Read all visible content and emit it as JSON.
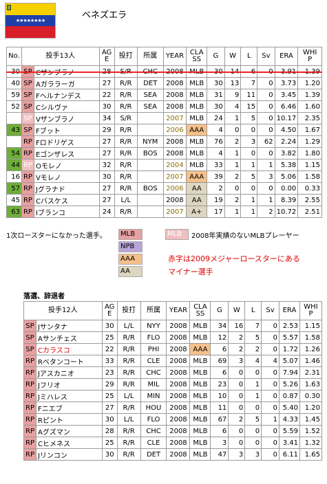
{
  "title": "ベネズエラ",
  "header": [
    "No.",
    "投手13人",
    "AGE",
    "投打",
    "所属",
    "YEAR",
    "CLASS",
    "G",
    "W",
    "L",
    "Sv",
    "ERA",
    "WHIP"
  ],
  "roster": [
    {
      "no": "30",
      "pos": "SP",
      "name": "Cザンブラノ",
      "age": "28",
      "bt": "S/R",
      "team": "CHC",
      "year": "2008",
      "cls": "MLB",
      "g": "30",
      "w": "14",
      "l": "6",
      "sv": "0",
      "era": "3.91",
      "whip": "1.39"
    },
    {
      "no": "40",
      "pos": "SP",
      "name": "Aガララーガ",
      "age": "27",
      "bt": "R/R",
      "team": "DET",
      "year": "2008",
      "cls": "MLB",
      "g": "30",
      "w": "13",
      "l": "7",
      "sv": "0",
      "era": "3.73",
      "whip": "1.20"
    },
    {
      "no": "59",
      "pos": "SP",
      "name": "Fヘルナンデス",
      "age": "22",
      "bt": "R/R",
      "team": "SEA",
      "year": "2008",
      "cls": "MLB",
      "g": "31",
      "w": "9",
      "l": "11",
      "sv": "0",
      "era": "3.45",
      "whip": "1.39"
    },
    {
      "no": "52",
      "pos": "SP",
      "name": "Cシルヴァ",
      "age": "30",
      "bt": "R/R",
      "team": "SEA",
      "year": "2008",
      "cls": "MLB",
      "g": "30",
      "w": "4",
      "l": "15",
      "sv": "0",
      "era": "6.46",
      "whip": "1.60"
    },
    {
      "no": "",
      "pos": "SP",
      "name": "Vザンブラノ",
      "age": "34",
      "bt": "S/R",
      "team": "",
      "year": "2007",
      "cls": "MLB",
      "g": "24",
      "w": "1",
      "l": "5",
      "sv": "0",
      "era": "10.17",
      "whip": "2.35"
    },
    {
      "no": "43",
      "pos": "SP",
      "name": "Fブット",
      "age": "29",
      "bt": "R/R",
      "team": "",
      "year": "2006",
      "cls": "AAA",
      "g": "4",
      "w": "0",
      "l": "0",
      "sv": "0",
      "era": "4.50",
      "whip": "1.67"
    },
    {
      "no": "",
      "pos": "RP",
      "name": "Fロドリゲス",
      "age": "27",
      "bt": "R/R",
      "team": "NYM",
      "year": "2008",
      "cls": "MLB",
      "g": "76",
      "w": "2",
      "l": "3",
      "sv": "62",
      "era": "2.24",
      "whip": "1.29"
    },
    {
      "no": "54",
      "pos": "RP",
      "name": "Eゴンザレス",
      "age": "27",
      "bt": "R/R",
      "team": "BOS",
      "year": "2008",
      "cls": "MLB",
      "g": "4",
      "w": "1",
      "l": "0",
      "sv": "0",
      "era": "3.82",
      "whip": "1.80"
    },
    {
      "no": "44",
      "pos": "RP",
      "name": "Oモレノ",
      "age": "32",
      "bt": "R/R",
      "team": "",
      "year": "2004",
      "cls": "MLB",
      "g": "33",
      "w": "1",
      "l": "1",
      "sv": "1",
      "era": "5.38",
      "whip": "1.15"
    },
    {
      "no": "16",
      "pos": "RP",
      "name": "Vモレノ",
      "age": "30",
      "bt": "R/R",
      "team": "",
      "year": "2007",
      "cls": "AAA",
      "g": "39",
      "w": "2",
      "l": "5",
      "sv": "3",
      "era": "5.06",
      "whip": "1.58"
    },
    {
      "no": "57",
      "pos": "RP",
      "name": "Jグラナド",
      "age": "27",
      "bt": "R/R",
      "team": "BOS",
      "year": "2006",
      "cls": "AA",
      "g": "2",
      "w": "0",
      "l": "0",
      "sv": "0",
      "era": "0.00",
      "whip": "0.33"
    },
    {
      "no": "45",
      "pos": "RP",
      "name": "Cバスケス",
      "age": "27",
      "bt": "L/L",
      "team": "",
      "year": "2008",
      "cls": "AA",
      "g": "19",
      "w": "2",
      "l": "1",
      "sv": "1",
      "era": "8.39",
      "whip": "2.55"
    },
    {
      "no": "63",
      "pos": "RP",
      "name": "Iブランコ",
      "age": "24",
      "bt": "R/R",
      "team": "",
      "year": "2007",
      "cls": "A+",
      "g": "17",
      "w": "1",
      "l": "1",
      "sv": "2",
      "era": "10.72",
      "whip": "2.51"
    }
  ],
  "legend": {
    "note_first": "1次ロースターになかった選手。",
    "mlb": "MLB",
    "npb": "NPB",
    "aaa": "AAA",
    "aa": "AA",
    "no_record_label": "MLB",
    "no_record_text": "2008年実績のないMLBプレーヤー",
    "red_note1": "赤字は2009メジャーロースターにある",
    "red_note2": "マイナー選手"
  },
  "dropped_title": "落選、辞退者",
  "dropped_header": [
    "投手12人",
    "AGE",
    "投打",
    "所属",
    "YEAR",
    "CLASS",
    "G",
    "W",
    "L",
    "Sv",
    "ERA",
    "WHIP"
  ],
  "dropped": [
    {
      "pos": "SP",
      "name": "Jサンタナ",
      "age": "30",
      "bt": "L/L",
      "team": "NYY",
      "year": "2008",
      "cls": "MLB",
      "g": "34",
      "w": "16",
      "l": "7",
      "sv": "0",
      "era": "2.53",
      "whip": "1.15"
    },
    {
      "pos": "SP",
      "name": "Aサンチェス",
      "age": "25",
      "bt": "R/R",
      "team": "FLO",
      "year": "2008",
      "cls": "MLB",
      "g": "12",
      "w": "2",
      "l": "5",
      "sv": "0",
      "era": "5.57",
      "whip": "1.58"
    },
    {
      "pos": "SP",
      "name": "Cカラスコ",
      "age": "22",
      "bt": "R/R",
      "team": "PHI",
      "year": "2008",
      "cls": "AAA",
      "g": "6",
      "w": "2",
      "l": "2",
      "sv": "0",
      "era": "1.72",
      "whip": "1.26"
    },
    {
      "pos": "RP",
      "name": "Rベタンコート",
      "age": "33",
      "bt": "R/R",
      "team": "CLE",
      "year": "2008",
      "cls": "MLB",
      "g": "69",
      "w": "3",
      "l": "4",
      "sv": "4",
      "era": "5.07",
      "whip": "1.46"
    },
    {
      "pos": "RP",
      "name": "Jアスカニオ",
      "age": "23",
      "bt": "R/R",
      "team": "CHC",
      "year": "2008",
      "cls": "MLB",
      "g": "6",
      "w": "0",
      "l": "0",
      "sv": "0",
      "era": "7.94",
      "whip": "2.31"
    },
    {
      "pos": "RP",
      "name": "Jフリオ",
      "age": "29",
      "bt": "R/R",
      "team": "MIL",
      "year": "2008",
      "cls": "MLB",
      "g": "23",
      "w": "0",
      "l": "1",
      "sv": "0",
      "era": "5.26",
      "whip": "1.63"
    },
    {
      "pos": "RP",
      "name": "Jミハレス",
      "age": "25",
      "bt": "L/L",
      "team": "MIN",
      "year": "2008",
      "cls": "MLB",
      "g": "10",
      "w": "0",
      "l": "1",
      "sv": "0",
      "era": "0.87",
      "whip": "0.30"
    },
    {
      "pos": "RP",
      "name": "Fニエブ",
      "age": "27",
      "bt": "R/R",
      "team": "HOU",
      "year": "2008",
      "cls": "MLB",
      "g": "11",
      "w": "0",
      "l": "0",
      "sv": "0",
      "era": "5.40",
      "whip": "1.20"
    },
    {
      "pos": "RP",
      "name": "Rピント",
      "age": "30",
      "bt": "L/L",
      "team": "FLO",
      "year": "2008",
      "cls": "MLB",
      "g": "67",
      "w": "2",
      "l": "5",
      "sv": "1",
      "era": "4.33",
      "whip": "1.45"
    },
    {
      "pos": "RP",
      "name": "Aグズマン",
      "age": "28",
      "bt": "R/R",
      "team": "CHC",
      "year": "2008",
      "cls": "MLB",
      "g": "6",
      "w": "0",
      "l": "0",
      "sv": "0",
      "era": "5.59",
      "whip": "1.52"
    },
    {
      "pos": "RP",
      "name": "Cヒメネス",
      "age": "25",
      "bt": "R/R",
      "team": "CLE",
      "year": "2008",
      "cls": "MLB",
      "g": "3",
      "w": "0",
      "l": "0",
      "sv": "0",
      "era": "3.41",
      "whip": "1.32"
    },
    {
      "pos": "RP",
      "name": "Jリンコン",
      "age": "30",
      "bt": "R/R",
      "team": "DET",
      "year": "2008",
      "cls": "MLB",
      "g": "47",
      "w": "3",
      "l": "3",
      "sv": "0",
      "era": "6.11",
      "whip": "1.65"
    }
  ],
  "colors": {
    "accent_green": "#6fae3a",
    "pos_pink": "#e8a0a0",
    "red": "#dd0000",
    "olive": "#8b7000"
  }
}
